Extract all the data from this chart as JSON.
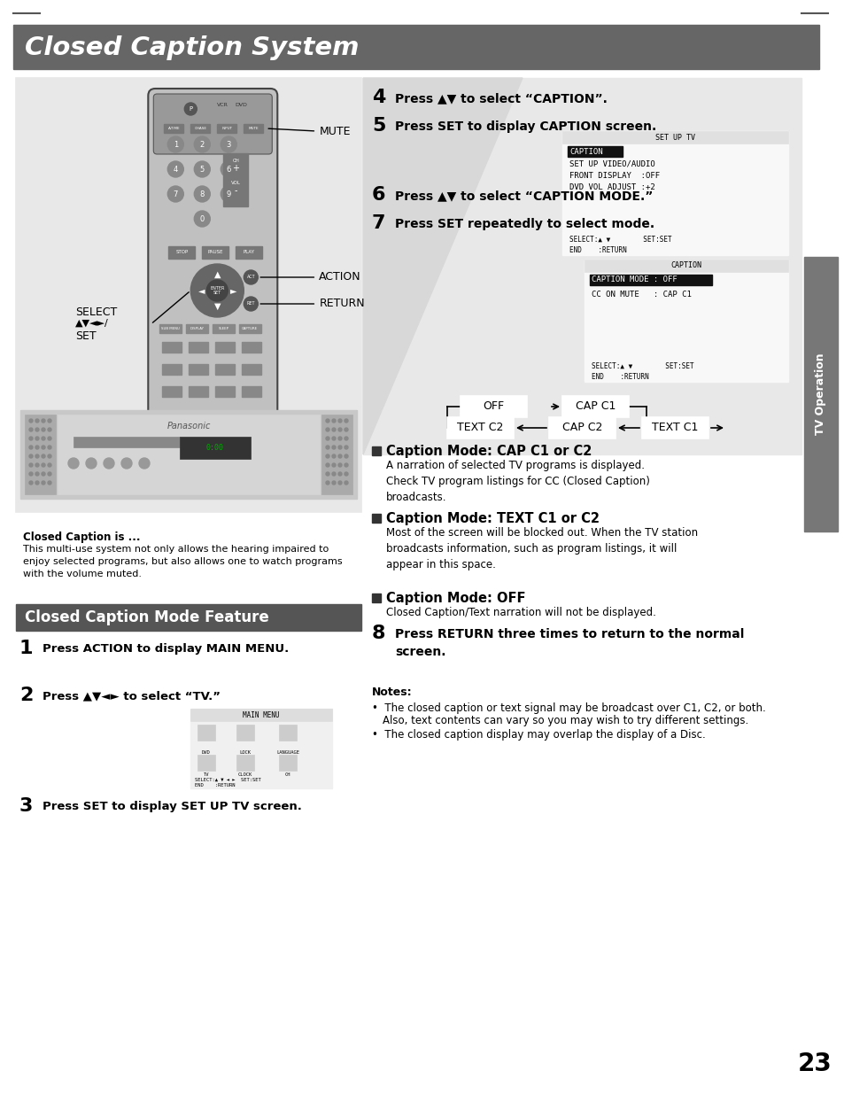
{
  "title": "Closed Caption System",
  "title_bg": "#666666",
  "title_color": "#ffffff",
  "page_bg": "#ffffff",
  "page_number": "23",
  "sidebar_text": "TV Operation",
  "sidebar_bg": "#777777",
  "section2_title": "Closed Caption Mode Feature",
  "section2_bg": "#555555",
  "closed_caption_box_title": "Closed Caption is ...",
  "closed_caption_box_text": "This multi-use system not only allows the hearing impaired to\nenjoy selected programs, but also allows one to watch programs\nwith the volume muted.",
  "step1": "Press ACTION to display MAIN MENU.",
  "step2": "Press ▲▼◄► to select “TV.”",
  "step3": "Press SET to display SET UP TV screen.",
  "step4": "Press ▲▼ to select “CAPTION”.",
  "step5": "Press SET to display CAPTION screen.",
  "step6": "Press ▲▼ to select “CAPTION MODE.”",
  "step7": "Press SET repeatedly to select mode.",
  "step8": "Press RETURN three times to return to the normal\nscreen.",
  "caption_mode_cap_title": "Caption Mode: CAP C1 or C2",
  "caption_mode_cap_text": "A narration of selected TV programs is displayed.\nCheck TV program listings for CC (Closed Caption)\nbroadcasts.",
  "caption_mode_text_title": "Caption Mode: TEXT C1 or C2",
  "caption_mode_text_text": "Most of the screen will be blocked out. When the TV station\nbroadcasts information, such as program listings, it will\nappear in this space.",
  "caption_mode_off_title": "Caption Mode: OFF",
  "caption_mode_off_text": "Closed Caption/Text narration will not be displayed.",
  "notes_title": "Notes:",
  "note1": "The closed caption or text signal may be broadcast over C1, C2, or both.\n   Also, text contents can vary so you may wish to try different settings.",
  "note2": "The closed caption display may overlap the display of a Disc.",
  "flow_labels": [
    "OFF",
    "CAP C1",
    "TEXT C1",
    "CAP C2",
    "TEXT C2"
  ],
  "left_panel_bg": "#e8e8e8",
  "left_panel_border": "#999999",
  "remote_body": "#888888",
  "remote_dark": "#444444"
}
